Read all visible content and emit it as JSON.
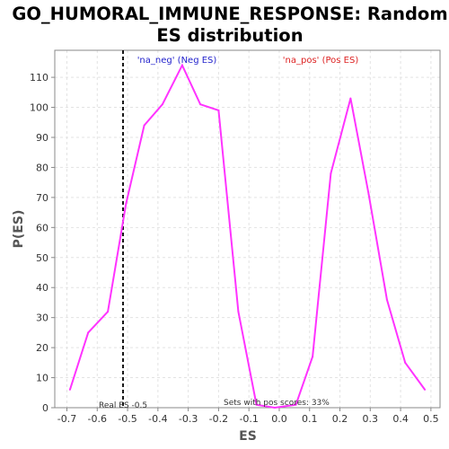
{
  "chart_data": {
    "type": "line",
    "title_line1": "GO_HUMORAL_IMMUNE_RESPONSE: Random",
    "title_line2": "ES distribution",
    "xlabel": "ES",
    "ylabel": "P(ES)",
    "xlim": [
      -0.74,
      0.53
    ],
    "ylim": [
      0,
      119
    ],
    "xticks": [
      -0.7,
      -0.6,
      -0.5,
      -0.4,
      -0.3,
      -0.2,
      -0.1,
      0.0,
      0.1,
      0.2,
      0.3,
      0.4,
      0.5
    ],
    "yticks": [
      0,
      10,
      20,
      30,
      40,
      50,
      60,
      70,
      80,
      90,
      100,
      110
    ],
    "grid": true,
    "series": [
      {
        "color": "#ff33ff",
        "x": [
          -0.69,
          -0.63,
          -0.565,
          -0.505,
          -0.445,
          -0.385,
          -0.32,
          -0.26,
          -0.2,
          -0.135,
          -0.075,
          -0.015,
          0.055,
          0.11,
          0.17,
          0.235,
          0.295,
          0.355,
          0.415,
          0.48
        ],
        "y": [
          6,
          25,
          32,
          68,
          94,
          101,
          114,
          101,
          99,
          32,
          1,
          0,
          1,
          17,
          78,
          103,
          71,
          36,
          15,
          6
        ]
      }
    ],
    "real_es": -0.515,
    "annotations": {
      "neg_label": "'na_neg' (Neg ES)",
      "pos_label": "'na_pos' (Pos ES)",
      "real_es_label": "Real ES -0.5",
      "pos_scores_label": "Sets with pos scores: 33%"
    },
    "colors": {
      "neg": "#2222cc",
      "pos": "#dd2222",
      "line": "#ff33ff"
    }
  }
}
